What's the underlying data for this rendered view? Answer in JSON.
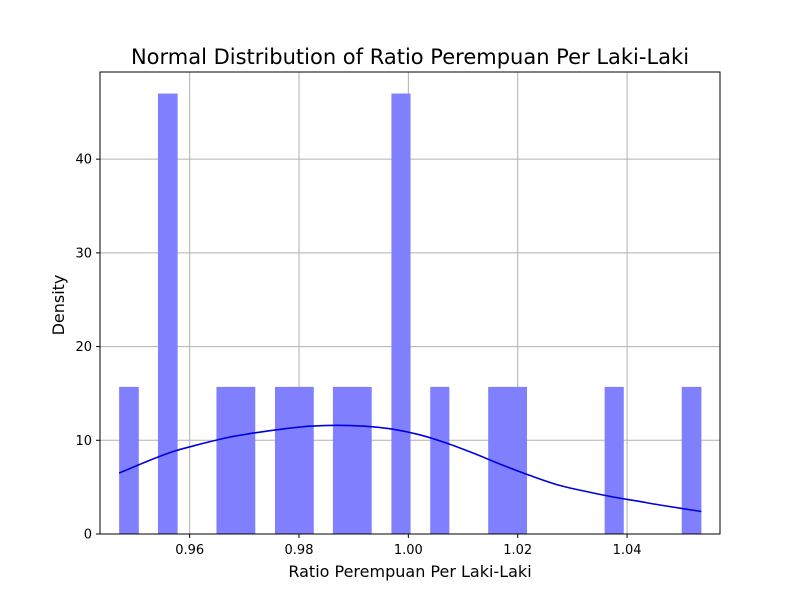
{
  "chart_data": {
    "type": "bar",
    "title": "Normal Distribution of Ratio Perempuan Per Laki-Laki",
    "xlabel": "Ratio Perempuan Per Laki-Laki",
    "ylabel": "Density",
    "xlim": [
      0.9436,
      1.057
    ],
    "ylim": [
      0,
      49.3
    ],
    "x_ticks": [
      {
        "value": 0.96,
        "label": "0.96"
      },
      {
        "value": 0.98,
        "label": "0.98"
      },
      {
        "value": 1.0,
        "label": "1.00"
      },
      {
        "value": 1.02,
        "label": "1.02"
      },
      {
        "value": 1.04,
        "label": "1.04"
      }
    ],
    "y_ticks": [
      {
        "value": 0,
        "label": "0"
      },
      {
        "value": 10,
        "label": "10"
      },
      {
        "value": 20,
        "label": "20"
      },
      {
        "value": 30,
        "label": "30"
      },
      {
        "value": 40,
        "label": "40"
      }
    ],
    "grid": true,
    "bar_color": "#8080ff",
    "kde_color": "#0000dd",
    "bins": [
      {
        "x0": 0.9471,
        "x1": 0.9507,
        "value": 15.7
      },
      {
        "x0": 0.9542,
        "x1": 0.9578,
        "value": 47.0
      },
      {
        "x0": 0.9649,
        "x1": 0.972,
        "value": 15.7
      },
      {
        "x0": 0.9756,
        "x1": 0.9827,
        "value": 15.7
      },
      {
        "x0": 0.9862,
        "x1": 0.9933,
        "value": 15.7
      },
      {
        "x0": 0.9969,
        "x1": 1.0004,
        "value": 47.0
      },
      {
        "x0": 1.004,
        "x1": 1.0075,
        "value": 15.7
      },
      {
        "x0": 1.0146,
        "x1": 1.0217,
        "value": 15.7
      },
      {
        "x0": 1.0359,
        "x1": 1.0394,
        "value": 15.7
      },
      {
        "x0": 1.05,
        "x1": 1.0536,
        "value": 15.7
      }
    ],
    "kde": {
      "x": [
        0.9471,
        0.952,
        0.957,
        0.962,
        0.967,
        0.972,
        0.977,
        0.982,
        0.987,
        0.992,
        0.997,
        1.002,
        1.007,
        1.012,
        1.017,
        1.022,
        1.027,
        1.032,
        1.037,
        1.042,
        1.047,
        1.0536
      ],
      "y": [
        6.5,
        7.7,
        8.8,
        9.6,
        10.3,
        10.8,
        11.2,
        11.5,
        11.6,
        11.5,
        11.2,
        10.6,
        9.7,
        8.6,
        7.4,
        6.3,
        5.3,
        4.6,
        4.0,
        3.5,
        3.0,
        2.4
      ]
    }
  }
}
